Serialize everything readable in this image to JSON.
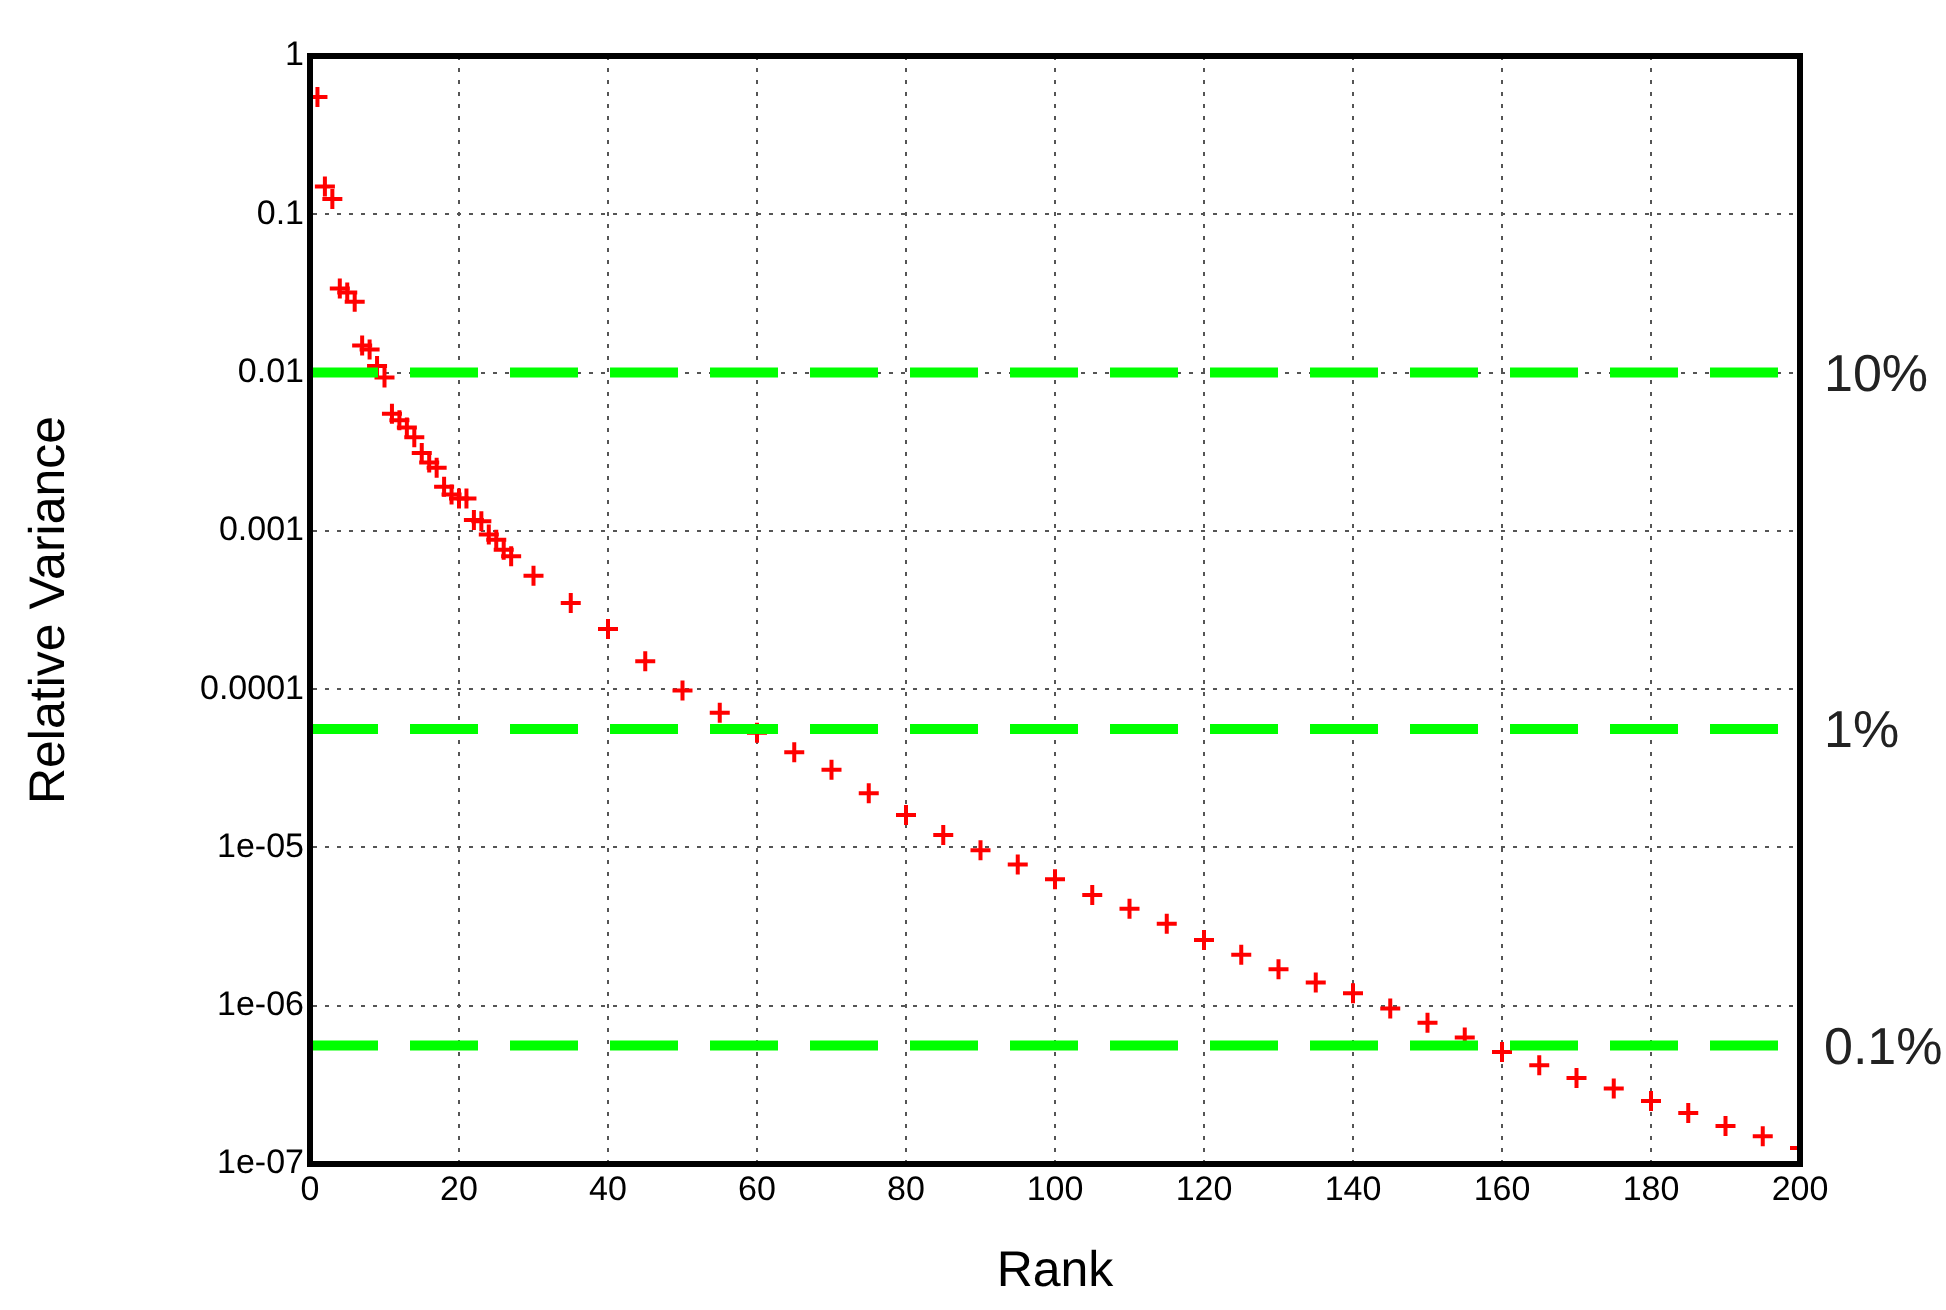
{
  "chart_data": {
    "type": "scatter",
    "xlabel": "Rank",
    "ylabel": "Relative Variance",
    "x": [
      1,
      2,
      3,
      4,
      5,
      6,
      7,
      8,
      9,
      10,
      11,
      12,
      13,
      14,
      15,
      16,
      17,
      18,
      19,
      20,
      21,
      22,
      23,
      24,
      25,
      26,
      27,
      30,
      35,
      40,
      45,
      50,
      55,
      60,
      65,
      70,
      75,
      80,
      85,
      90,
      95,
      100,
      105,
      110,
      115,
      120,
      125,
      130,
      135,
      140,
      145,
      150,
      155,
      160,
      165,
      170,
      175,
      180,
      185,
      190,
      195,
      200
    ],
    "series": [
      {
        "color": "#ff0000",
        "values": [
          0.55,
          0.15,
          0.125,
          0.034,
          0.032,
          0.028,
          0.0148,
          0.014,
          0.011,
          0.0093,
          0.0055,
          0.005,
          0.0045,
          0.0039,
          0.0031,
          0.0027,
          0.0025,
          0.0019,
          0.0017,
          0.0016,
          0.0016,
          0.00117,
          0.00115,
          0.00095,
          0.00088,
          0.00076,
          0.00069,
          0.00052,
          0.00035,
          0.00024,
          0.00015,
          9.8e-05,
          7.1e-05,
          5.3e-05,
          4e-05,
          3.1e-05,
          2.2e-05,
          1.6e-05,
          1.2e-05,
          9.6e-06,
          7.8e-06,
          6.3e-06,
          5e-06,
          4.1e-06,
          3.3e-06,
          2.6e-06,
          2.1e-06,
          1.7e-06,
          1.4e-06,
          1.2e-06,
          9.6e-07,
          7.8e-07,
          6.3e-07,
          5.1e-07,
          4.2e-07,
          3.5e-07,
          3e-07,
          2.5e-07,
          2.1e-07,
          1.74e-07,
          1.5e-07,
          1.26e-07
        ]
      }
    ],
    "marker": "cross",
    "log": "y",
    "grid": true,
    "xlim": [
      0,
      200
    ],
    "xticks": [
      0,
      20,
      40,
      60,
      80,
      100,
      120,
      140,
      160,
      180,
      200
    ],
    "ylim": [
      1e-07,
      1
    ],
    "yticks": [
      {
        "value": 1e-07,
        "label": "1e-07"
      },
      {
        "value": 1e-06,
        "label": "1e-06"
      },
      {
        "value": 1e-05,
        "label": "1e-05"
      },
      0.0001,
      0.001,
      0.01,
      0.1,
      1
    ],
    "ref_lines": [
      {
        "axis": "y",
        "value": 0.01,
        "color": "#00ff00",
        "line_style": "dashed"
      },
      {
        "axis": "y",
        "value": 5.6e-05,
        "color": "#00ff00",
        "line_style": "dashed"
      },
      {
        "axis": "y",
        "value": 5.6e-07,
        "color": "#00ff00",
        "line_style": "dashed"
      }
    ],
    "annotations": [
      "10%",
      "1%",
      "0.1%"
    ]
  }
}
